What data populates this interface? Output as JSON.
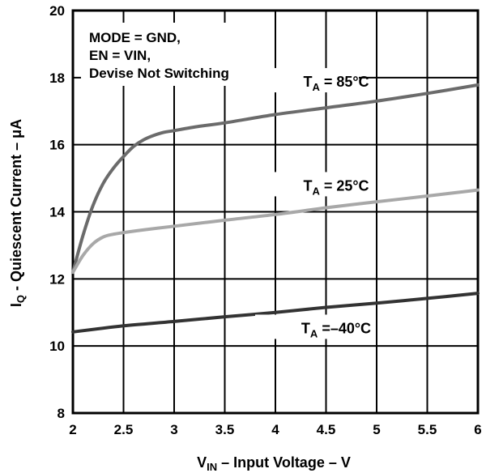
{
  "chart_data": {
    "type": "line",
    "xlabel": {
      "main": "V",
      "sub": "IN",
      "rest": " – Input Voltage – V"
    },
    "ylabel": {
      "main": "I",
      "sub": "Q",
      "rest": " - Quiescent Current  – μA"
    },
    "xlim": [
      2,
      6
    ],
    "ylim": [
      8,
      20
    ],
    "x_ticks": [
      2,
      2.5,
      3,
      3.5,
      4,
      4.5,
      5,
      5.5,
      6
    ],
    "x_tick_labels": [
      "2",
      "2.5",
      "3",
      "3.5",
      "4",
      "4.5",
      "5",
      "5.5",
      "6"
    ],
    "y_ticks": [
      8,
      10,
      12,
      14,
      16,
      18,
      20
    ],
    "y_tick_labels": [
      "8",
      "10",
      "12",
      "14",
      "16",
      "18",
      "20"
    ],
    "grid": true,
    "annotation_lines": [
      "MODE = GND,",
      "EN = VIN,",
      "Devise Not Switching"
    ],
    "series": [
      {
        "name": "TA = 85°C",
        "label_main": "T",
        "label_sub": "A",
        "label_rest": " = 85°C",
        "label_anchor": [
          4.6,
          17.85
        ],
        "color": "#6b6b6b",
        "points": [
          [
            2.0,
            12.2
          ],
          [
            2.1,
            13.3
          ],
          [
            2.2,
            14.2
          ],
          [
            2.3,
            14.85
          ],
          [
            2.4,
            15.3
          ],
          [
            2.5,
            15.65
          ],
          [
            2.6,
            15.95
          ],
          [
            2.7,
            16.15
          ],
          [
            2.8,
            16.28
          ],
          [
            2.9,
            16.37
          ],
          [
            3.0,
            16.42
          ],
          [
            3.25,
            16.55
          ],
          [
            3.5,
            16.65
          ],
          [
            4.0,
            16.9
          ],
          [
            4.5,
            17.1
          ],
          [
            5.0,
            17.3
          ],
          [
            5.5,
            17.53
          ],
          [
            6.0,
            17.78
          ]
        ]
      },
      {
        "name": "TA = 25°C",
        "label_main": "T",
        "label_sub": "A",
        "label_rest": " = 25°C",
        "label_anchor": [
          4.6,
          14.75
        ],
        "color": "#a8a8a8",
        "points": [
          [
            2.0,
            12.2
          ],
          [
            2.1,
            12.7
          ],
          [
            2.2,
            13.05
          ],
          [
            2.3,
            13.25
          ],
          [
            2.4,
            13.33
          ],
          [
            2.5,
            13.38
          ],
          [
            2.75,
            13.48
          ],
          [
            3.0,
            13.57
          ],
          [
            3.5,
            13.75
          ],
          [
            4.0,
            13.92
          ],
          [
            4.5,
            14.12
          ],
          [
            5.0,
            14.3
          ],
          [
            5.5,
            14.47
          ],
          [
            6.0,
            14.65
          ]
        ]
      },
      {
        "name": "TA = –40°C",
        "label_main": "T",
        "label_sub": "A",
        "label_rest": " =–40°C",
        "label_anchor": [
          4.6,
          10.5
        ],
        "color": "#333333",
        "points": [
          [
            2.0,
            10.42
          ],
          [
            2.5,
            10.6
          ],
          [
            3.0,
            10.73
          ],
          [
            3.5,
            10.87
          ],
          [
            4.0,
            11.0
          ],
          [
            4.5,
            11.15
          ],
          [
            5.0,
            11.28
          ],
          [
            5.5,
            11.42
          ],
          [
            6.0,
            11.57
          ]
        ]
      }
    ]
  }
}
